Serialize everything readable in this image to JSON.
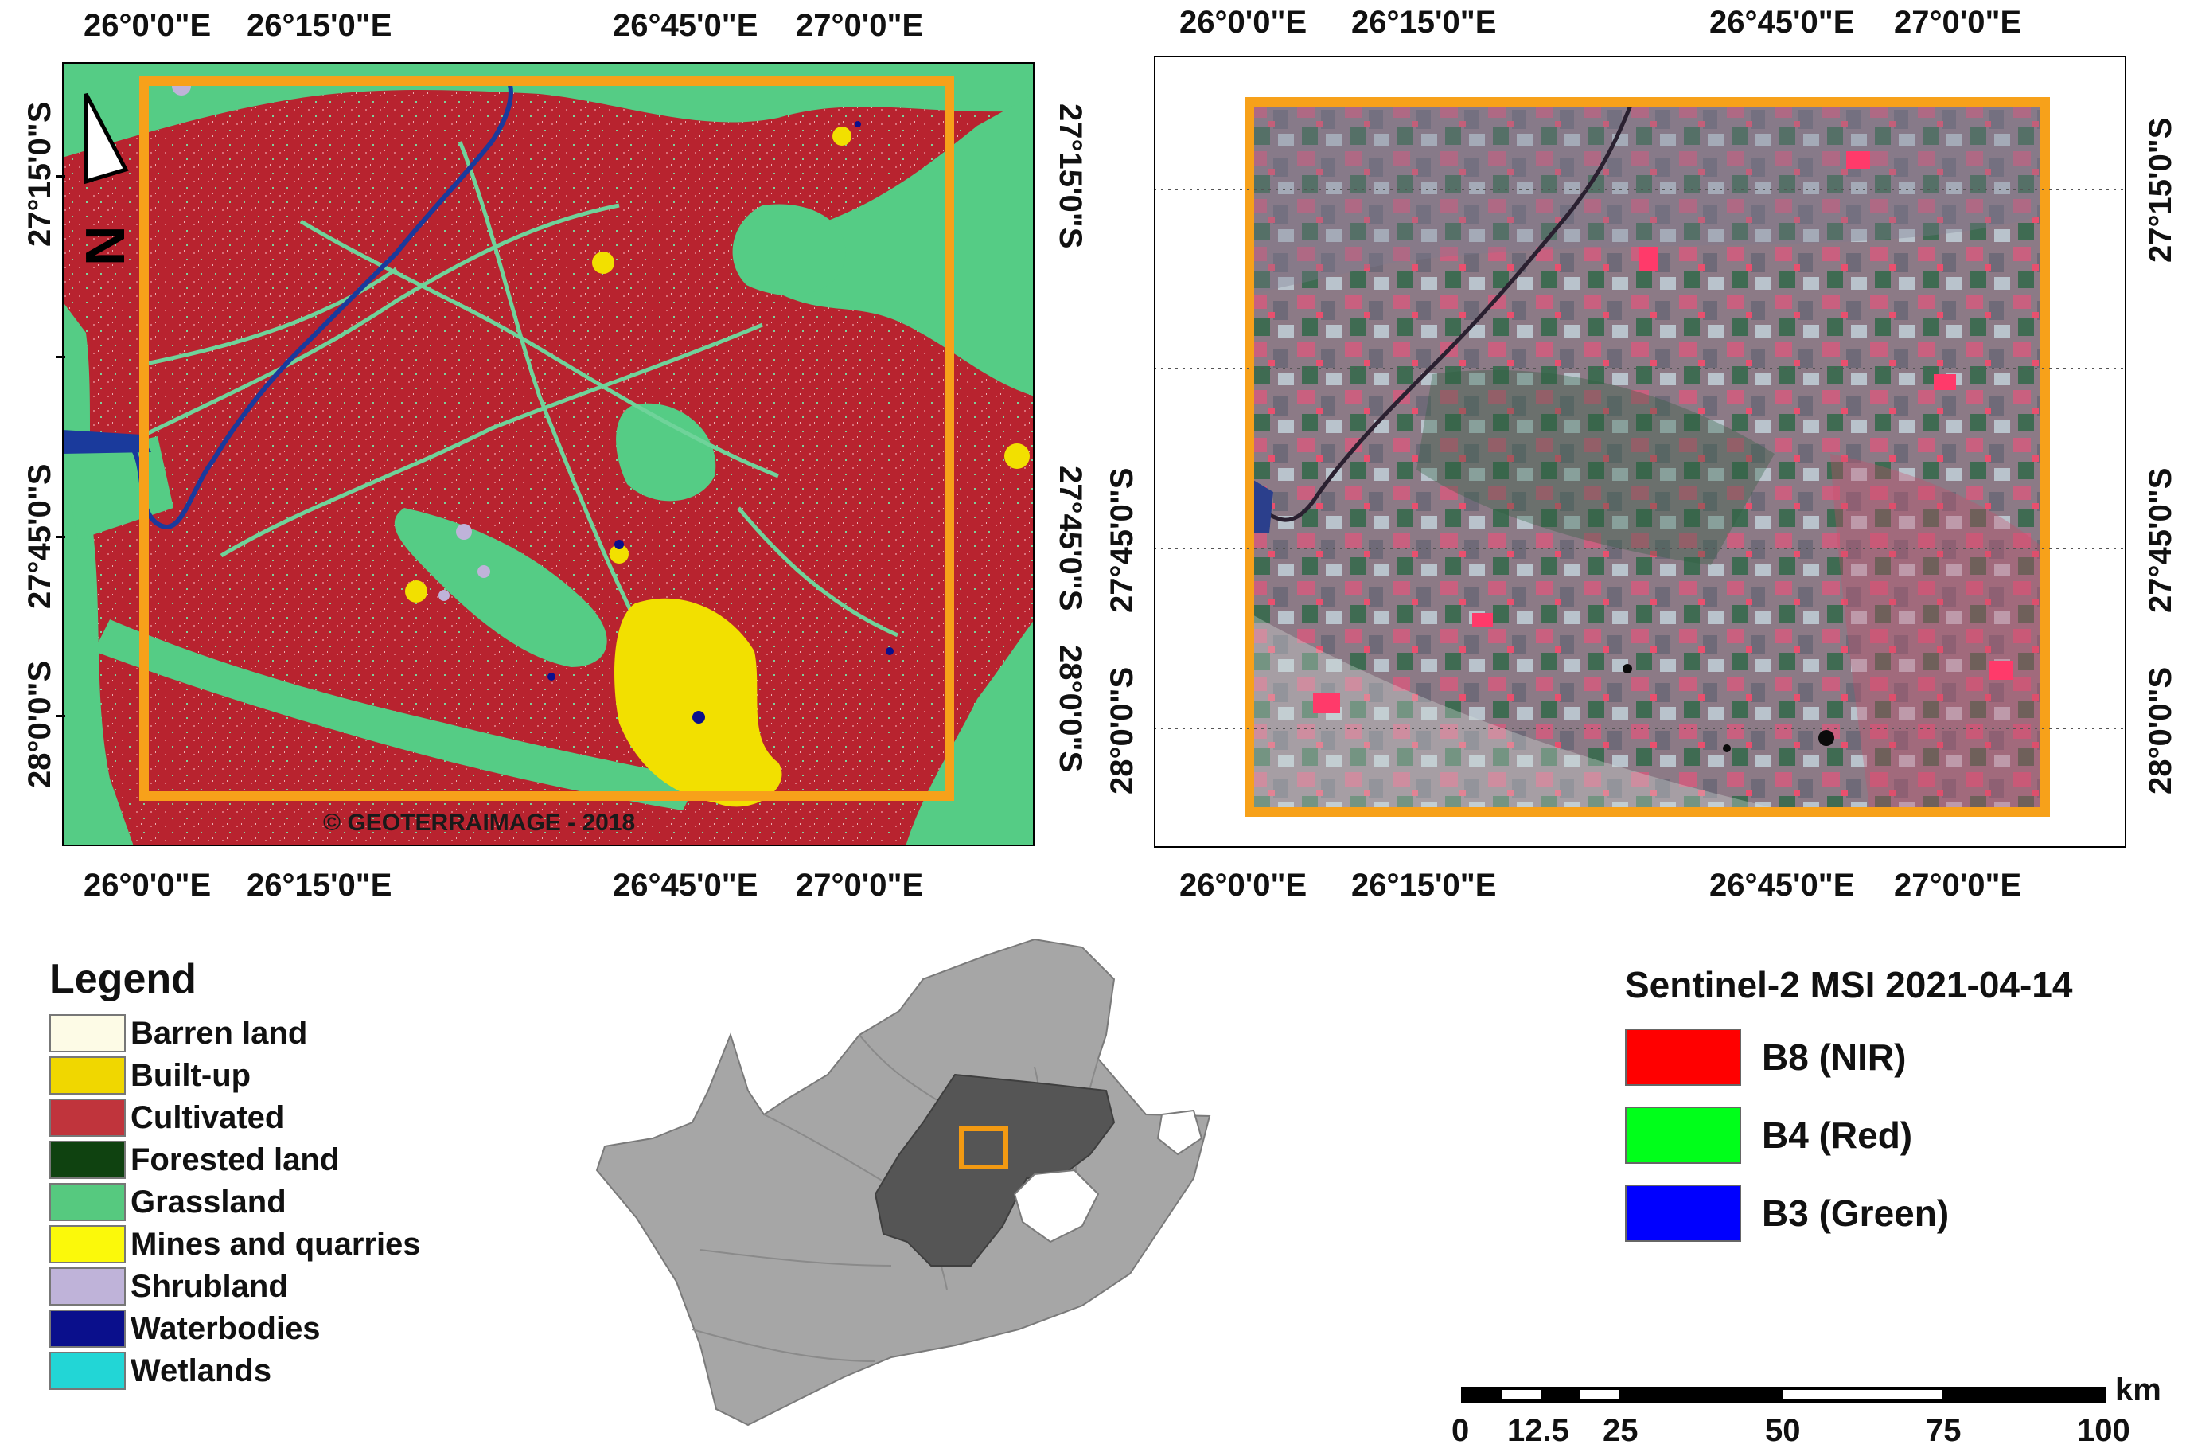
{
  "left_map": {
    "lon_labels": [
      "26°0'0\"E",
      "26°15'0\"E",
      "26°45'0\"E",
      "27°0'0\"E"
    ],
    "lat_labels": [
      "27°15'0\"S",
      "27°45'0\"S",
      "28°0'0\"S"
    ],
    "copyright": "© GEOTERRAIMAGE - 2018",
    "north_arrow": "N",
    "colors": {
      "cultivated": "#b8232f",
      "grassland": "#55cc85",
      "water": "#1a3a9c",
      "builtup": "#f2e000",
      "frame": "#f7a11a"
    }
  },
  "right_map": {
    "lon_labels": [
      "26°0'0\"E",
      "26°15'0\"E",
      "26°45'0\"E",
      "27°0'0\"E"
    ],
    "lat_labels": [
      "27°15'0\"S",
      "27°45'0\"S",
      "28°0'0\"S"
    ]
  },
  "legend": {
    "title": "Legend",
    "items": [
      {
        "label": "Barren land",
        "color": "#fdfbe6"
      },
      {
        "label": "Built-up",
        "color": "#f0d700"
      },
      {
        "label": "Cultivated",
        "color": "#c0343c"
      },
      {
        "label": "Forested land",
        "color": "#0f4210"
      },
      {
        "label": "Grassland",
        "color": "#56c97f"
      },
      {
        "label": "Mines and quarries",
        "color": "#fbf90a"
      },
      {
        "label": "Shrubland",
        "color": "#bfb3d9"
      },
      {
        "label": "Waterbodies",
        "color": "#0a0f8c"
      },
      {
        "label": "Wetlands",
        "color": "#22d6d6"
      }
    ]
  },
  "sentinel": {
    "title": "Sentinel-2 MSI 2021-04-14",
    "bands": [
      {
        "label": "B8 (NIR)",
        "color": "#ff0000"
      },
      {
        "label": "B4 (Red)",
        "color": "#00ff1a"
      },
      {
        "label": "B3 (Green)",
        "color": "#0000ff"
      }
    ]
  },
  "scalebar": {
    "unit": "km",
    "ticks": [
      "0",
      "12.5",
      "25",
      "50",
      "75",
      "100"
    ]
  },
  "inset": {
    "country_color": "#a6a6a6",
    "province_color": "#555555",
    "marker_color": "#f39a12"
  }
}
